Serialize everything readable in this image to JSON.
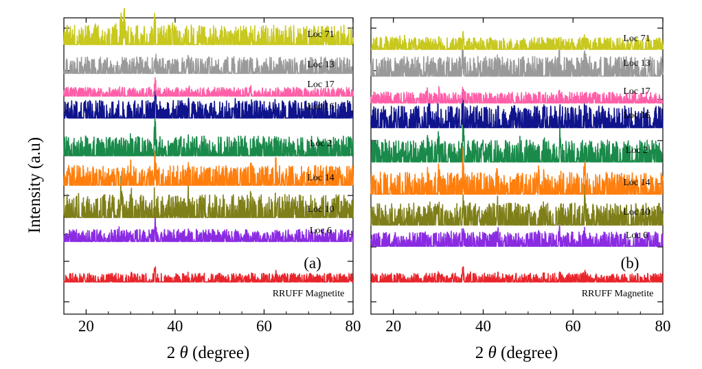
{
  "ylabel": "Intensity  (a.u)",
  "colors": {
    "RRUFF Magnetite": "#e8252b",
    "Loc 6": "#8a2be2",
    "Loc 10": "#7f7f1a",
    "Loc 14": "#ff7f0e",
    "Loc 2": "#1a8a4a",
    "Loc 16": "#10148c",
    "Loc 17": "#ff5fa8",
    "Loc 13": "#9a9a9a",
    "Loc 71": "#c8c81e"
  },
  "chart_data": [
    {
      "type": "line",
      "panel_label": "(a)",
      "xlabel_prefix": "2",
      "xlabel_symbol": "θ",
      "xlabel_suffix": " (degree)",
      "xlim": [
        15,
        80
      ],
      "x_ticks": [
        20,
        40,
        60,
        80
      ],
      "y_ticks": "unlabeled",
      "series": [
        {
          "name": "RRUFF Magnetite",
          "peaks": [
            [
              18.3,
              0.06
            ],
            [
              30.1,
              0.2
            ],
            [
              35.5,
              0.85
            ],
            [
              37.1,
              0.15
            ],
            [
              43.1,
              0.25
            ],
            [
              53.5,
              0.08
            ],
            [
              57.0,
              0.25
            ],
            [
              62.6,
              0.35
            ],
            [
              74.0,
              0.06
            ]
          ]
        },
        {
          "name": "Loc 6",
          "peaks": [
            [
              27.5,
              0.2
            ],
            [
              30.1,
              0.15
            ],
            [
              35.5,
              1.0
            ],
            [
              43.1,
              0.08
            ],
            [
              57.0,
              0.1
            ],
            [
              62.6,
              0.2
            ]
          ]
        },
        {
          "name": "Loc 10",
          "peaks": [
            [
              18.3,
              0.1
            ],
            [
              27.9,
              1.0
            ],
            [
              30.1,
              0.3
            ],
            [
              35.5,
              0.6
            ],
            [
              43.1,
              0.6
            ],
            [
              57.0,
              0.15
            ],
            [
              62.6,
              0.2
            ]
          ]
        },
        {
          "name": "Loc 14",
          "peaks": [
            [
              27.5,
              0.15
            ],
            [
              30.1,
              0.25
            ],
            [
              35.5,
              1.0
            ],
            [
              43.1,
              0.35
            ],
            [
              53.5,
              0.1
            ],
            [
              57.0,
              0.3
            ],
            [
              62.6,
              0.4
            ],
            [
              74.0,
              0.06
            ]
          ]
        },
        {
          "name": "Loc 2",
          "peaks": [
            [
              18.3,
              0.08
            ],
            [
              27.5,
              0.1
            ],
            [
              30.1,
              0.25
            ],
            [
              35.5,
              1.0
            ],
            [
              43.1,
              0.3
            ],
            [
              50.5,
              0.08
            ],
            [
              57.0,
              0.25
            ],
            [
              62.6,
              0.25
            ]
          ]
        },
        {
          "name": "Loc 16",
          "peaks": [
            [
              18.3,
              0.1
            ],
            [
              27.5,
              0.2
            ],
            [
              30.1,
              0.35
            ],
            [
              35.5,
              1.0
            ],
            [
              43.1,
              0.3
            ],
            [
              53.5,
              0.1
            ],
            [
              57.0,
              0.25
            ],
            [
              62.6,
              0.3
            ],
            [
              74.0,
              0.06
            ]
          ]
        },
        {
          "name": "Loc 17",
          "peaks": [
            [
              27.5,
              0.15
            ],
            [
              30.1,
              0.3
            ],
            [
              35.5,
              1.0
            ],
            [
              37.1,
              0.1
            ],
            [
              43.1,
              0.15
            ],
            [
              57.0,
              0.2
            ],
            [
              62.6,
              0.25
            ]
          ]
        },
        {
          "name": "Loc 13",
          "peaks": [
            [
              27.5,
              0.15
            ],
            [
              28.5,
              0.2
            ],
            [
              30.1,
              0.35
            ],
            [
              35.5,
              1.0
            ],
            [
              43.1,
              0.3
            ],
            [
              53.5,
              0.1
            ],
            [
              57.0,
              0.35
            ],
            [
              62.6,
              0.35
            ]
          ]
        },
        {
          "name": "Loc 71",
          "peaks": [
            [
              20.9,
              0.2
            ],
            [
              22.1,
              0.25
            ],
            [
              26.7,
              0.3
            ],
            [
              27.5,
              0.45
            ],
            [
              27.9,
              0.5
            ],
            [
              28.6,
              1.0
            ],
            [
              29.4,
              0.2
            ],
            [
              35.5,
              0.7
            ],
            [
              39.5,
              0.1
            ],
            [
              43.1,
              0.15
            ],
            [
              47.5,
              0.1
            ],
            [
              50.5,
              0.08
            ],
            [
              57.0,
              0.12
            ],
            [
              62.6,
              0.12
            ],
            [
              65.0,
              0.06
            ]
          ]
        }
      ]
    },
    {
      "type": "line",
      "panel_label": "(b)",
      "xlabel_prefix": "2",
      "xlabel_symbol": "θ",
      "xlabel_suffix": " (degree)",
      "xlim": [
        15,
        80
      ],
      "x_ticks": [
        20,
        40,
        60,
        80
      ],
      "y_ticks": "unlabeled",
      "series": [
        {
          "name": "RRUFF Magnetite",
          "peaks": [
            [
              18.3,
              0.06
            ],
            [
              30.1,
              0.2
            ],
            [
              35.5,
              0.85
            ],
            [
              37.1,
              0.15
            ],
            [
              43.1,
              0.25
            ],
            [
              53.5,
              0.08
            ],
            [
              57.0,
              0.25
            ],
            [
              62.6,
              0.35
            ],
            [
              74.0,
              0.06
            ]
          ]
        },
        {
          "name": "Loc 6",
          "peaks": [
            [
              18.3,
              0.1
            ],
            [
              27.5,
              0.15
            ],
            [
              30.1,
              0.4
            ],
            [
              33.1,
              0.2
            ],
            [
              35.5,
              0.9
            ],
            [
              37.1,
              0.2
            ],
            [
              43.1,
              0.85
            ],
            [
              52.5,
              0.15
            ],
            [
              53.5,
              0.2
            ],
            [
              57.0,
              0.5
            ],
            [
              62.6,
              0.3
            ]
          ]
        },
        {
          "name": "Loc 10",
          "peaks": [
            [
              18.3,
              0.1
            ],
            [
              26.6,
              0.1
            ],
            [
              27.9,
              0.15
            ],
            [
              30.1,
              0.35
            ],
            [
              33.1,
              0.25
            ],
            [
              35.5,
              1.0
            ],
            [
              37.1,
              0.15
            ],
            [
              43.1,
              0.4
            ],
            [
              53.5,
              0.1
            ],
            [
              57.0,
              0.25
            ],
            [
              62.6,
              1.0
            ],
            [
              74.0,
              0.08
            ]
          ]
        },
        {
          "name": "Loc 14",
          "peaks": [
            [
              18.3,
              0.12
            ],
            [
              27.5,
              0.25
            ],
            [
              30.1,
              0.4
            ],
            [
              35.5,
              1.0
            ],
            [
              43.1,
              0.35
            ],
            [
              52.2,
              0.35
            ],
            [
              53.5,
              0.3
            ],
            [
              57.0,
              0.6
            ],
            [
              62.6,
              0.8
            ],
            [
              74.0,
              0.08
            ]
          ]
        },
        {
          "name": "Loc 2",
          "peaks": [
            [
              18.3,
              0.1
            ],
            [
              21.0,
              0.1
            ],
            [
              27.5,
              0.3
            ],
            [
              30.1,
              0.4
            ],
            [
              35.5,
              1.0
            ],
            [
              43.1,
              0.5
            ],
            [
              48.2,
              0.15
            ],
            [
              53.5,
              0.15
            ],
            [
              57.0,
              0.6
            ],
            [
              62.6,
              0.5
            ],
            [
              74.0,
              0.08
            ]
          ]
        },
        {
          "name": "Loc 16",
          "peaks": [
            [
              18.3,
              0.1
            ],
            [
              22.0,
              0.08
            ],
            [
              27.9,
              0.6
            ],
            [
              30.1,
              0.35
            ],
            [
              35.5,
              1.0
            ],
            [
              43.1,
              0.2
            ],
            [
              53.5,
              0.12
            ],
            [
              57.0,
              0.35
            ],
            [
              59.0,
              0.25
            ],
            [
              62.6,
              0.65
            ],
            [
              74.0,
              0.15
            ]
          ]
        },
        {
          "name": "Loc 17",
          "peaks": [
            [
              27.5,
              0.4
            ],
            [
              30.1,
              0.45
            ],
            [
              35.5,
              1.0
            ],
            [
              43.1,
              0.1
            ],
            [
              57.0,
              0.45
            ],
            [
              62.6,
              0.25
            ]
          ]
        },
        {
          "name": "Loc 13",
          "peaks": [
            [
              18.3,
              0.1
            ],
            [
              27.5,
              0.2
            ],
            [
              30.1,
              0.35
            ],
            [
              33.1,
              0.15
            ],
            [
              35.5,
              1.0
            ],
            [
              43.1,
              0.4
            ],
            [
              53.5,
              0.15
            ],
            [
              57.0,
              0.4
            ],
            [
              62.6,
              0.4
            ]
          ]
        },
        {
          "name": "Loc 71",
          "peaks": [
            [
              18.3,
              0.15
            ],
            [
              20.0,
              0.2
            ],
            [
              21.5,
              0.2
            ],
            [
              22.5,
              0.15
            ],
            [
              26.5,
              0.2
            ],
            [
              27.5,
              0.3
            ],
            [
              30.1,
              0.2
            ],
            [
              35.5,
              0.5
            ],
            [
              42.5,
              0.1
            ],
            [
              43.1,
              0.15
            ],
            [
              53.5,
              0.1
            ],
            [
              57.0,
              0.25
            ],
            [
              62.6,
              0.25
            ],
            [
              68.0,
              0.05
            ]
          ]
        }
      ]
    }
  ]
}
